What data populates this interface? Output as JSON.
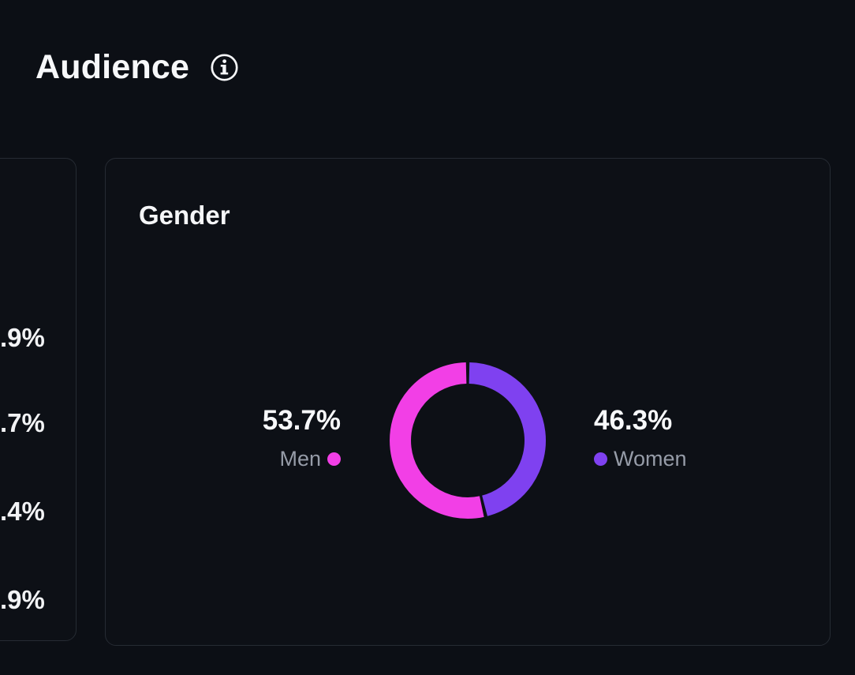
{
  "header": {
    "title": "Audience"
  },
  "left_card": {
    "partial_values": [
      ".9%",
      ".7%",
      ".4%",
      ".9%"
    ]
  },
  "chart_data": {
    "type": "pie",
    "donut": true,
    "title": "Gender",
    "segments": [
      {
        "label": "Men",
        "value": 53.7,
        "display": "53.7%",
        "color": "#f23fe6"
      },
      {
        "label": "Women",
        "value": 46.3,
        "display": "46.3%",
        "color": "#7f41f0"
      }
    ],
    "start_angle_deg": 0,
    "clockwise_draw_order": [
      "Women",
      "Men"
    ],
    "legend_position": "left and right of donut",
    "background": "#0d1016"
  }
}
